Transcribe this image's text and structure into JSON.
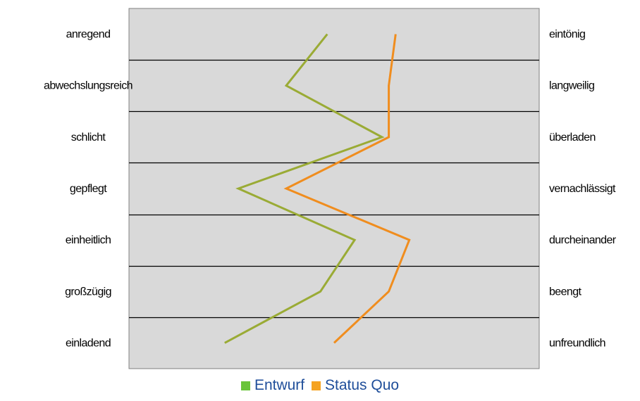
{
  "chart_data": {
    "type": "line",
    "orientation": "vertical-profile",
    "items": [
      {
        "left": "anregend",
        "right": "eintönig"
      },
      {
        "left": "abwechslungsreich",
        "right": "langweilig"
      },
      {
        "left": "schlicht",
        "right": "überladen"
      },
      {
        "left": "gepflegt",
        "right": "vernachlässigt"
      },
      {
        "left": "einheitlich",
        "right": "durcheinander"
      },
      {
        "left": "großzügig",
        "right": "beengt"
      },
      {
        "left": "einladend",
        "right": "unfreundlich"
      }
    ],
    "scale": [
      1,
      7
    ],
    "series": [
      {
        "name": "Entwurf",
        "color": "#9aab35",
        "legend_color": "#6ac43a",
        "values": [
          3.9,
          3.3,
          4.7,
          2.6,
          4.3,
          3.8,
          2.4
        ]
      },
      {
        "name": "Status Quo",
        "color": "#f08d1e",
        "legend_color": "#f5a322",
        "values": [
          4.9,
          4.8,
          4.8,
          3.3,
          5.1,
          4.8,
          4.0
        ]
      }
    ],
    "grid": true
  },
  "colors": {
    "plot_background": "#d9d9d9",
    "plot_border": "#808080",
    "gridline": "#000000",
    "legend_text": "#1f4e9a"
  }
}
